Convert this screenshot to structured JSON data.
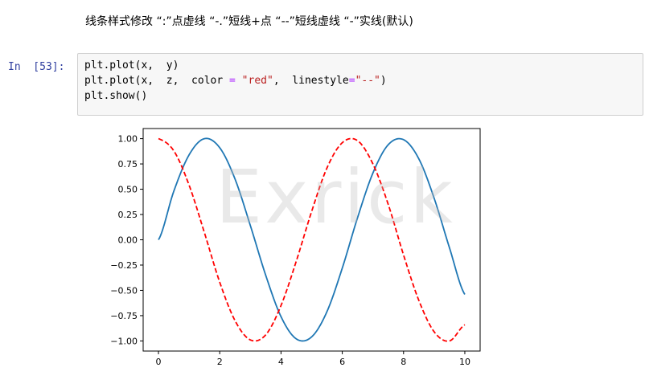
{
  "markdown": {
    "text": "线条样式修改 “:”点虚线 “-.”短线+点 “--”短线虚线 “-”实线(默认)"
  },
  "cell": {
    "prompt": "In  [53]:",
    "code": {
      "line1": {
        "a": "plt.plot(x,  y)"
      },
      "line2": {
        "a": "plt.plot(x,  z,  color ",
        "b": "=",
        "c": " ",
        "d": "\"red\"",
        "e": ",  linestyle",
        "f": "=",
        "g": "\"--\"",
        "h": ")"
      },
      "line3": {
        "a": "plt.show()"
      }
    }
  },
  "watermark": {
    "text": "Exrick"
  },
  "chart_data": {
    "type": "line",
    "title": "",
    "xlabel": "",
    "ylabel": "",
    "xlim": [
      -0.5,
      10.5
    ],
    "ylim": [
      -1.1,
      1.1
    ],
    "xticks": [
      0,
      2,
      4,
      6,
      8,
      10
    ],
    "xtick_labels": [
      "0",
      "2",
      "4",
      "6",
      "8",
      "10"
    ],
    "yticks": [
      1.0,
      0.75,
      0.5,
      0.25,
      0.0,
      -0.25,
      -0.5,
      -0.75,
      -1.0
    ],
    "ytick_labels": [
      "1.00",
      "0.75",
      "0.50",
      "0.25",
      "0.00",
      "−0.25",
      "−0.50",
      "−0.75",
      "−1.00"
    ],
    "grid": false,
    "series": [
      {
        "color": "#1f77b4",
        "linestyle": "solid",
        "x": [
          0,
          0.5,
          1,
          1.5,
          2,
          2.5,
          3,
          3.5,
          4,
          4.5,
          5,
          5.5,
          6,
          6.5,
          7,
          7.5,
          8,
          8.5,
          9,
          9.5,
          10
        ],
        "y": [
          0.0,
          0.48,
          0.84,
          1.0,
          0.91,
          0.6,
          0.14,
          -0.35,
          -0.76,
          -0.98,
          -0.96,
          -0.71,
          -0.28,
          0.22,
          0.66,
          0.94,
          0.99,
          0.8,
          0.41,
          -0.08,
          -0.54
        ]
      },
      {
        "color": "#ff0000",
        "linestyle": "dashed",
        "x": [
          0,
          0.5,
          1,
          1.5,
          2,
          2.5,
          3,
          3.5,
          4,
          4.5,
          5,
          5.5,
          6,
          6.5,
          7,
          7.5,
          8,
          8.5,
          9,
          9.5,
          10
        ],
        "y": [
          1.0,
          0.88,
          0.54,
          0.07,
          -0.42,
          -0.8,
          -0.99,
          -0.94,
          -0.65,
          -0.21,
          0.28,
          0.71,
          0.96,
          0.98,
          0.75,
          0.35,
          -0.15,
          -0.6,
          -0.91,
          -1.0,
          -0.84
        ]
      }
    ]
  }
}
